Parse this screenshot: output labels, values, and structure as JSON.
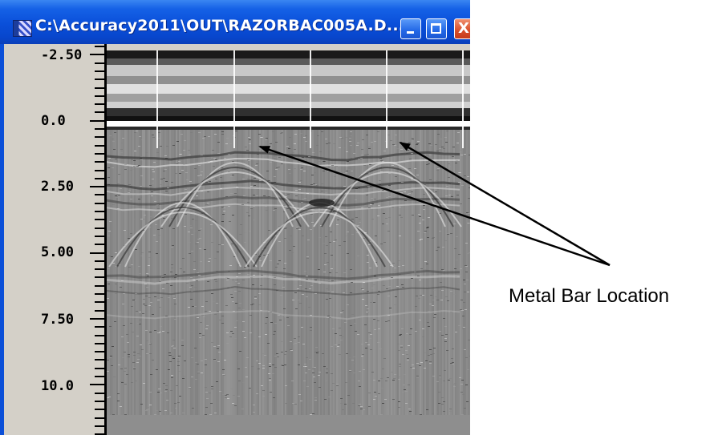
{
  "window": {
    "title": "C:\\Accuracy2011\\OUT\\RAZORBAC005A.D...",
    "icon": "application-icon",
    "controls": {
      "minimize": "minimize-icon",
      "maximize": "maximize-icon",
      "close": "close-icon",
      "close_glyph": "X"
    }
  },
  "depth_scale": {
    "labels": [
      "-2.50",
      "0.0",
      "2.50",
      "5.00",
      "7.50",
      "10.0"
    ]
  },
  "radargram": {
    "background": "#8a8a8a",
    "surface_band": "#2a2a2a"
  },
  "annotation": {
    "label": "Metal Bar Location"
  }
}
